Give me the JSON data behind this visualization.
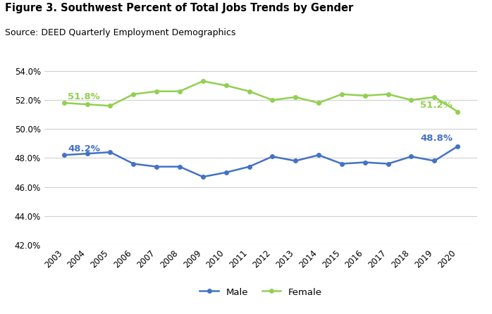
{
  "title": "Figure 3. Southwest Percent of Total Jobs Trends by Gender",
  "source": "Source: DEED Quarterly Employment Demographics",
  "years": [
    2003,
    2004,
    2005,
    2006,
    2007,
    2008,
    2009,
    2010,
    2011,
    2012,
    2013,
    2014,
    2015,
    2016,
    2017,
    2018,
    2019,
    2020
  ],
  "male": [
    48.2,
    48.3,
    48.4,
    47.6,
    47.4,
    47.4,
    46.7,
    47.0,
    47.4,
    48.1,
    47.8,
    48.2,
    47.6,
    47.7,
    47.6,
    48.1,
    47.8,
    48.8
  ],
  "female": [
    51.8,
    51.7,
    51.6,
    52.4,
    52.6,
    52.6,
    53.3,
    53.0,
    52.6,
    52.0,
    52.2,
    51.8,
    52.4,
    52.3,
    52.4,
    52.0,
    52.2,
    51.2
  ],
  "male_color": "#4472c4",
  "female_color": "#92d050",
  "ylim": [
    42.0,
    55.0
  ],
  "yticks": [
    42.0,
    44.0,
    46.0,
    48.0,
    50.0,
    52.0,
    54.0
  ],
  "annotation_male_first": "48.2%",
  "annotation_male_last": "48.8%",
  "annotation_female_first": "51.8%",
  "annotation_female_last": "51.2%",
  "background_color": "#ffffff",
  "grid_color": "#d0d0d0"
}
